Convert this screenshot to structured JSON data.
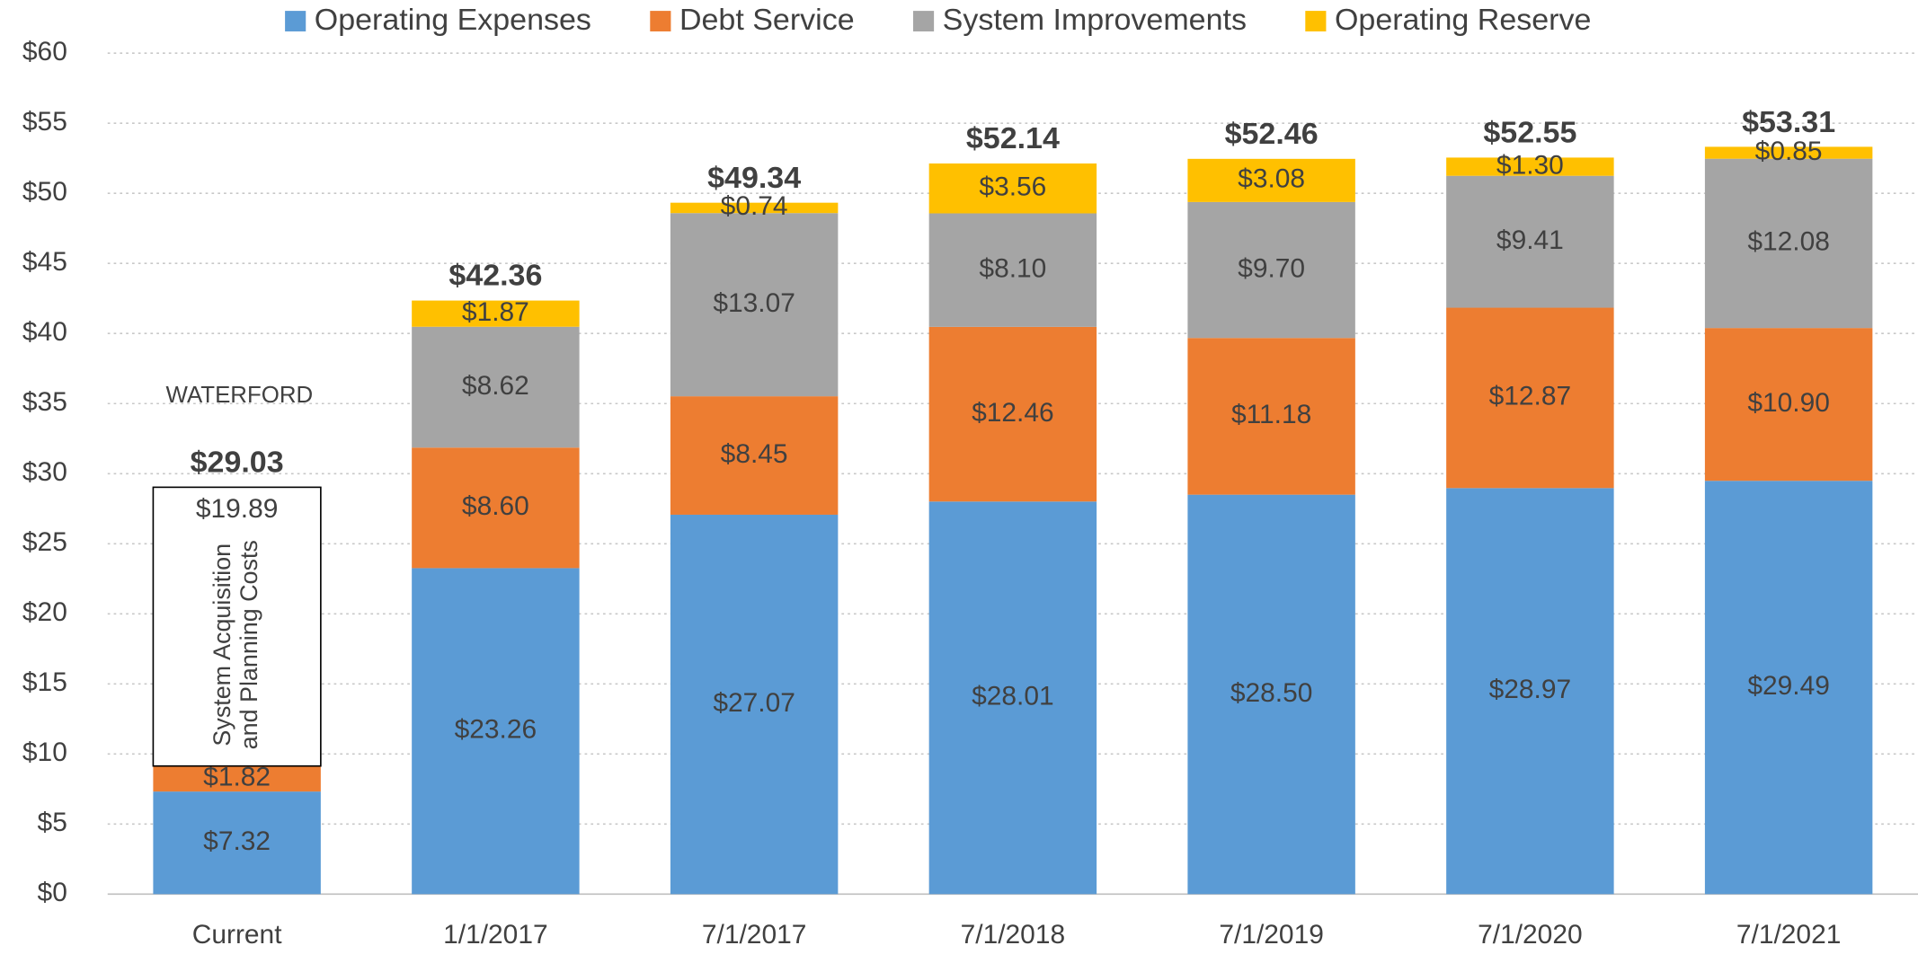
{
  "chart_data": {
    "type": "stacked_bar",
    "categories": [
      "Current",
      "1/1/2017",
      "7/1/2017",
      "7/1/2018",
      "7/1/2019",
      "7/1/2020",
      "7/1/2021"
    ],
    "series": [
      {
        "name": "Operating Expenses",
        "color": "#5b9bd5",
        "in_legend": true,
        "values": [
          7.32,
          23.26,
          27.07,
          28.01,
          28.5,
          28.97,
          29.49
        ],
        "value_labels": [
          "$7.32",
          "$23.26",
          "$27.07",
          "$28.01",
          "$28.50",
          "$28.97",
          "$29.49"
        ]
      },
      {
        "name": "Debt Service",
        "color": "#ed7d31",
        "in_legend": true,
        "values": [
          1.82,
          8.6,
          8.45,
          12.46,
          11.18,
          12.87,
          10.9
        ],
        "value_labels": [
          "$1.82",
          "$8.60",
          "$8.45",
          "$12.46",
          "$11.18",
          "$12.87",
          "$10.90"
        ]
      },
      {
        "label_lines": [
          "System Acquisition",
          "and Planning Costs"
        ],
        "color": "#ffffff",
        "stroke": "#000000",
        "in_legend": false,
        "values": [
          19.89,
          null,
          null,
          null,
          null,
          null,
          null
        ],
        "value_labels": [
          "$19.89",
          null,
          null,
          null,
          null,
          null,
          null
        ]
      },
      {
        "name": "System Improvements",
        "color": "#a5a5a5",
        "in_legend": true,
        "values": [
          null,
          8.62,
          13.07,
          8.1,
          9.7,
          9.41,
          12.08
        ],
        "value_labels": [
          null,
          "$8.62",
          "$13.07",
          "$8.10",
          "$9.70",
          "$9.41",
          "$12.08"
        ]
      },
      {
        "name": "Operating Reserve",
        "color": "#ffc000",
        "in_legend": true,
        "values": [
          null,
          1.87,
          0.74,
          3.56,
          3.08,
          1.3,
          0.85
        ],
        "value_labels": [
          null,
          "$1.87",
          "$0.74",
          "$3.56",
          "$3.08",
          "$1.30",
          "$0.85"
        ]
      }
    ],
    "totals": [
      29.03,
      42.36,
      49.34,
      52.14,
      52.46,
      52.55,
      53.31
    ],
    "total_labels": [
      "$29.03",
      "$42.36",
      "$49.34",
      "$52.14",
      "$52.46",
      "$52.55",
      "$53.31"
    ],
    "annotation": "WATERFORD",
    "ylim": [
      0,
      60
    ],
    "yticks": [
      {
        "value": 0,
        "label": "$0"
      },
      {
        "value": 5,
        "label": "$5"
      },
      {
        "value": 10,
        "label": "$10"
      },
      {
        "value": 15,
        "label": "$15"
      },
      {
        "value": 20,
        "label": "$20"
      },
      {
        "value": 25,
        "label": "$25"
      },
      {
        "value": 30,
        "label": "$30"
      },
      {
        "value": 35,
        "label": "$35"
      },
      {
        "value": 40,
        "label": "$40"
      },
      {
        "value": 45,
        "label": "$45"
      },
      {
        "value": 50,
        "label": "$50"
      },
      {
        "value": 55,
        "label": "$55"
      },
      {
        "value": 60,
        "label": "$60"
      }
    ],
    "grid": true,
    "legend": "top"
  }
}
